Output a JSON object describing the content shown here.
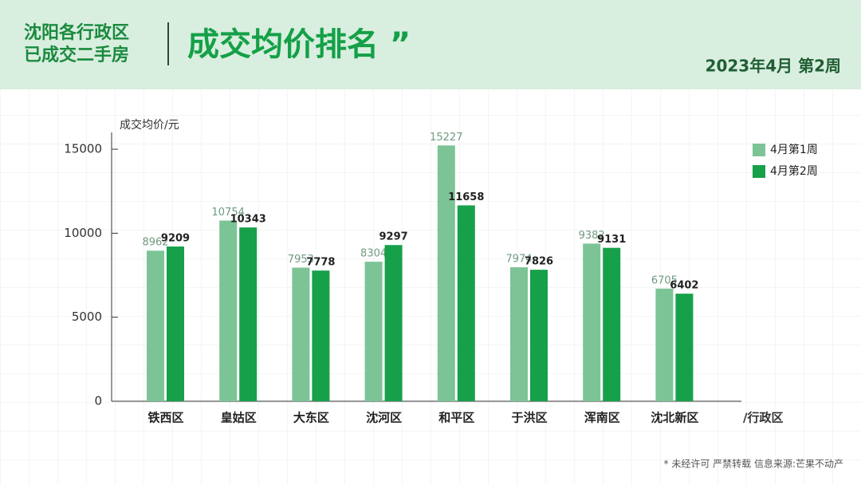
{
  "chart_data": {
    "type": "bar",
    "title_lines": [
      "沈阳各行政区",
      "已成交二手房"
    ],
    "title": "成交均价排名 ”",
    "subtitle": "2023年4月 第2周",
    "ylabel": "成交均价/元",
    "xlabel": "/行政区",
    "note": "* 未经许可 严禁转载 信息来源:芒果不动产",
    "categories": [
      "铁西区",
      "皇姑区",
      "大东区",
      "沈河区",
      "和平区",
      "于洪区",
      "浑南区",
      "沈北新区"
    ],
    "series": [
      {
        "name": "4月第1周",
        "color": "#7cc495",
        "values": [
          8962,
          10754,
          7953,
          8304,
          15227,
          7974,
          9382,
          6705
        ]
      },
      {
        "name": "4月第2周",
        "color": "#17a04a",
        "values": [
          9209,
          10343,
          7778,
          9297,
          11658,
          7826,
          9131,
          6402
        ]
      }
    ],
    "ylim": [
      0,
      16000
    ],
    "yticks": [
      0,
      5000,
      10000,
      15000
    ],
    "legend": "top-right"
  }
}
